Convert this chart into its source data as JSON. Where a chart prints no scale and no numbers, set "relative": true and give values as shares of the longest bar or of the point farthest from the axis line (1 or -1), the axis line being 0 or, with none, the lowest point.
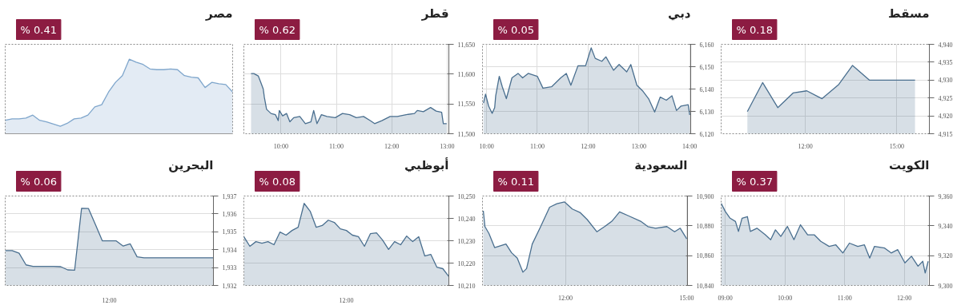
{
  "chart_data": [
    {
      "type": "area",
      "title": "مصر",
      "annotations": [
        "% 0.41"
      ],
      "relative": true,
      "grid": "y",
      "categories": [
        null,
        null,
        null,
        null,
        null,
        null,
        null,
        null,
        null,
        null,
        null,
        null,
        null,
        null,
        null,
        null,
        null,
        null,
        null,
        null,
        null,
        null,
        null,
        null,
        null,
        null,
        null,
        null,
        null,
        null,
        null,
        null,
        null,
        null
      ],
      "series": [
        {
          "color": "#7fa6cc",
          "values": [
            0.18,
            0.2,
            0.2,
            0.21,
            0.25,
            0.18,
            0.16,
            0.13,
            0.1,
            0.14,
            0.2,
            0.21,
            0.25,
            0.36,
            0.39,
            0.56,
            0.69,
            0.78,
            1,
            0.96,
            0.93,
            0.87,
            0.86,
            0.86,
            0.87,
            0.86,
            0.78,
            0.76,
            0.75,
            0.62,
            0.69,
            0.67,
            0.66,
            0.56
          ]
        }
      ]
    },
    {
      "type": "area",
      "title": "قطر",
      "annotations": [
        "% 0.62"
      ],
      "grid": true,
      "xlim": [
        9.33,
        13.03
      ],
      "ylim": [
        11500,
        11650
      ],
      "xticks": [
        {
          "value": 10,
          "label": "10:00"
        },
        {
          "value": 11,
          "label": "11:00"
        },
        {
          "value": 12,
          "label": "12:00"
        },
        {
          "value": 13,
          "label": "13:00"
        }
      ],
      "yticks": [
        {
          "value": 11500,
          "label": "11,500"
        },
        {
          "value": 11550,
          "label": "11,550"
        },
        {
          "value": 11600,
          "label": "11,600"
        },
        {
          "value": 11650,
          "label": "11,650"
        }
      ],
      "x": [
        9.46,
        9.51,
        9.59,
        9.64,
        9.68,
        9.7,
        9.74,
        9.82,
        9.9,
        9.95,
        9.97,
        10.03,
        10.1,
        10.16,
        10.23,
        10.34,
        10.44,
        10.54,
        10.59,
        10.65,
        10.73,
        10.83,
        10.98,
        11.11,
        11.24,
        11.36,
        11.49,
        11.61,
        11.69,
        11.82,
        11.97,
        12.1,
        12.26,
        12.41,
        12.46,
        12.57,
        12.7,
        12.8,
        12.9,
        12.93,
        12.99
      ],
      "series": [
        {
          "color": "#4a6f8f",
          "values": [
            11601,
            11601,
            11597,
            11585,
            11575,
            11561,
            11541,
            11534,
            11532,
            11522,
            11539,
            11530,
            11534,
            11520,
            11527,
            11529,
            11517,
            11520,
            11539,
            11517,
            11532,
            11529,
            11527,
            11534,
            11532,
            11527,
            11529,
            11522,
            11517,
            11522,
            11529,
            11529,
            11532,
            11534,
            11539,
            11537,
            11544,
            11538,
            11536,
            11517,
            11517
          ]
        }
      ]
    },
    {
      "type": "area",
      "title": "دبي",
      "annotations": [
        "% 0.05"
      ],
      "grid": true,
      "xlim": [
        9.92,
        14.02
      ],
      "ylim": [
        6120,
        6160
      ],
      "xticks": [
        {
          "value": 10,
          "label": "10:00"
        },
        {
          "value": 11,
          "label": "11:00"
        },
        {
          "value": 12,
          "label": "12:00"
        },
        {
          "value": 13,
          "label": "13:00"
        },
        {
          "value": 14,
          "label": "14:00"
        }
      ],
      "yticks": [
        {
          "value": 6120,
          "label": "6,120"
        },
        {
          "value": 6130,
          "label": "6,130"
        },
        {
          "value": 6140,
          "label": "6,140"
        },
        {
          "value": 6150,
          "label": "6,150"
        },
        {
          "value": 6160,
          "label": "6,160"
        }
      ],
      "x": [
        9.94,
        9.98,
        10.04,
        10.11,
        10.16,
        10.18,
        10.25,
        10.31,
        10.39,
        10.5,
        10.62,
        10.71,
        10.82,
        11.0,
        11.11,
        11.28,
        11.46,
        11.57,
        11.66,
        11.8,
        11.95,
        12.06,
        12.14,
        12.27,
        12.35,
        12.5,
        12.61,
        12.76,
        12.84,
        12.96,
        13.08,
        13.19,
        13.31,
        13.42,
        13.54,
        13.65,
        13.74,
        13.83,
        13.97,
        14.0
      ],
      "series": [
        {
          "color": "#4a6f8f",
          "values": [
            6133.7,
            6137.7,
            6132.4,
            6129.1,
            6131.7,
            6137,
            6145.7,
            6141,
            6135.7,
            6145,
            6147,
            6145,
            6147,
            6145.7,
            6140.4,
            6141,
            6145,
            6147,
            6141.7,
            6150.4,
            6150.4,
            6158.4,
            6153.7,
            6152.4,
            6154.4,
            6148.4,
            6151,
            6147.7,
            6151,
            6141.7,
            6139,
            6135.7,
            6129.7,
            6136.4,
            6135,
            6137,
            6130.4,
            6132.4,
            6133,
            6128.4
          ]
        }
      ]
    },
    {
      "type": "area",
      "title": "مسقط",
      "annotations": [
        "% 0.18"
      ],
      "grid": true,
      "xlim": [
        9.24,
        16.07
      ],
      "ylim": [
        4915,
        4940
      ],
      "xticks": [
        {
          "value": 12,
          "label": "12:00"
        },
        {
          "value": 15,
          "label": "15:00"
        }
      ],
      "yticks": [
        {
          "value": 4915,
          "label": "4,915"
        },
        {
          "value": 4920,
          "label": "4,920"
        },
        {
          "value": 4925,
          "label": "4,925"
        },
        {
          "value": 4930,
          "label": "4,930"
        },
        {
          "value": 4935,
          "label": "4,935"
        },
        {
          "value": 4940,
          "label": "4,940"
        }
      ],
      "x": [
        10.1,
        10.6,
        11.1,
        11.6,
        12.05,
        12.55,
        13.1,
        13.55,
        14.1,
        14.6,
        15.1,
        15.6
      ],
      "series": [
        {
          "color": "#4a6f8f",
          "values": [
            4921.2,
            4929.3,
            4922.3,
            4926.4,
            4927.0,
            4924.8,
            4928.8,
            4934.1,
            4930,
            4930,
            4930,
            4930
          ]
        }
      ]
    },
    {
      "type": "area",
      "title": "البحرين",
      "annotations": [
        "% 0.06",
        "12:00"
      ],
      "grid": "y",
      "ylim": [
        1932,
        1937
      ],
      "categories": [
        null,
        null,
        null,
        null,
        null,
        null,
        null,
        null,
        null,
        null,
        null,
        null,
        null,
        null,
        null,
        null,
        null,
        null,
        null,
        null,
        null,
        null,
        null,
        null,
        null,
        null,
        null,
        null,
        null,
        null,
        null
      ],
      "yticks": [
        {
          "value": 1932,
          "label": "1,932"
        },
        {
          "value": 1933,
          "label": "1,933"
        },
        {
          "value": 1934,
          "label": "1,934"
        },
        {
          "value": 1935,
          "label": "1,935"
        },
        {
          "value": 1936,
          "label": "1,936"
        },
        {
          "value": 1937,
          "label": "1,937"
        }
      ],
      "series": [
        {
          "color": "#4a6f8f",
          "values": [
            1933.95,
            1933.95,
            1933.8,
            1933.15,
            1933.07,
            1933.07,
            1933.07,
            1933.07,
            1933.05,
            1932.87,
            1932.85,
            1936.31,
            1936.3,
            1935.4,
            1934.49,
            1934.49,
            1934.49,
            1934.2,
            1934.33,
            1933.6,
            1933.55,
            1933.55,
            1933.55,
            1933.55,
            1933.55,
            1933.55,
            1933.55,
            1933.55,
            1933.55,
            1933.55,
            1933.55
          ]
        }
      ]
    },
    {
      "type": "area",
      "title": "أبوظبي",
      "annotations": [
        "% 0.08",
        "12:00"
      ],
      "grid": "y",
      "ylim": [
        10210,
        10250
      ],
      "categories": [
        null,
        null,
        null,
        null,
        null,
        null,
        null,
        null,
        null,
        null,
        null,
        null,
        null,
        null,
        null,
        null,
        null,
        null,
        null,
        null,
        null,
        null,
        null,
        null,
        null,
        null,
        null,
        null,
        null,
        null,
        null,
        null,
        null,
        null,
        null
      ],
      "yticks": [
        {
          "value": 10210,
          "label": "10,210"
        },
        {
          "value": 10220,
          "label": "10,220"
        },
        {
          "value": 10230,
          "label": "10,230"
        },
        {
          "value": 10240,
          "label": "10,240"
        },
        {
          "value": 10250,
          "label": "10,250"
        }
      ],
      "series": [
        {
          "color": "#4a6f8f",
          "values": [
            10231.8,
            10227.5,
            10229.6,
            10228.9,
            10229.6,
            10228.2,
            10233.9,
            10232.5,
            10234.6,
            10236,
            10246.7,
            10243.2,
            10236,
            10236.8,
            10239.2,
            10238.2,
            10235.3,
            10234.6,
            10232.5,
            10231.8,
            10227.5,
            10233.2,
            10233.5,
            10230.3,
            10226.1,
            10229.6,
            10228.2,
            10232.1,
            10229.6,
            10231.8,
            10223.2,
            10223.9,
            10218.2,
            10217.5,
            10214
          ]
        }
      ]
    },
    {
      "type": "area",
      "title": "السعودية",
      "annotations": [
        "% 0.11"
      ],
      "grid": true,
      "xlim": [
        9.95,
        15.02
      ],
      "ylim": [
        10840,
        10900
      ],
      "xticks": [
        {
          "value": 12,
          "label": "12:00"
        },
        {
          "value": 15,
          "label": "15:00"
        }
      ],
      "yticks": [
        {
          "value": 10840,
          "label": "10,840"
        },
        {
          "value": 10860,
          "label": "10,860"
        },
        {
          "value": 10880,
          "label": "10,880"
        },
        {
          "value": 10900,
          "label": "10,900"
        }
      ],
      "x": [
        9.97,
        10.01,
        10.11,
        10.25,
        10.39,
        10.53,
        10.67,
        10.81,
        10.95,
        11.04,
        11.18,
        11.37,
        11.61,
        11.79,
        11.98,
        12.17,
        12.36,
        12.54,
        12.78,
        12.97,
        13.15,
        13.34,
        13.57,
        13.86,
        14.04,
        14.23,
        14.51,
        14.7,
        14.84,
        15.0
      ],
      "series": [
        {
          "color": "#4a6f8f",
          "values": [
            10890.1,
            10879.5,
            10874.8,
            10865.4,
            10866.6,
            10867.8,
            10861.9,
            10858.4,
            10848.9,
            10851.3,
            10867.8,
            10878.4,
            10892.5,
            10894.8,
            10896,
            10891.3,
            10889,
            10884.2,
            10876,
            10879.5,
            10883.1,
            10889.4,
            10886.6,
            10883.1,
            10879.5,
            10878.4,
            10879.5,
            10876,
            10878.4,
            10871.3
          ]
        }
      ]
    },
    {
      "type": "area",
      "title": "الكويت",
      "annotations": [
        "% 0.37"
      ],
      "grid": true,
      "xlim": [
        8.93,
        12.42
      ],
      "ylim": [
        9300,
        9360
      ],
      "xticks": [
        {
          "value": 9,
          "label": "09:00"
        },
        {
          "value": 10,
          "label": "10:00"
        },
        {
          "value": 11,
          "label": "11:00"
        },
        {
          "value": 12,
          "label": "12:00"
        }
      ],
      "yticks": [
        {
          "value": 9300,
          "label": "9,300"
        },
        {
          "value": 9320,
          "label": "9,320"
        },
        {
          "value": 9340,
          "label": "9,340"
        },
        {
          "value": 9360,
          "label": "9,360"
        }
      ],
      "x": [
        8.93,
        9.0,
        9.08,
        9.17,
        9.22,
        9.28,
        9.37,
        9.42,
        9.53,
        9.67,
        9.76,
        9.84,
        9.93,
        10.04,
        10.15,
        10.26,
        10.38,
        10.49,
        10.6,
        10.74,
        10.85,
        10.97,
        11.08,
        11.22,
        11.33,
        11.42,
        11.5,
        11.67,
        11.78,
        11.89,
        12.01,
        12.12,
        12.23,
        12.31,
        12.35,
        12.4
      ],
      "series": [
        {
          "color": "#4a6f8f",
          "values": [
            9355.1,
            9349.6,
            9345.1,
            9342.9,
            9336.2,
            9345.1,
            9346.2,
            9336.2,
            9338.4,
            9334,
            9330.7,
            9337.3,
            9332.9,
            9339.6,
            9330.7,
            9340.7,
            9334,
            9334,
            9329.6,
            9326.2,
            9327.3,
            9321.8,
            9328.4,
            9326.2,
            9327.3,
            9318.4,
            9326.2,
            9325.1,
            9321.8,
            9324,
            9315.1,
            9319.6,
            9312.9,
            9316.2,
            9308.4,
            9316.2
          ]
        }
      ]
    }
  ]
}
